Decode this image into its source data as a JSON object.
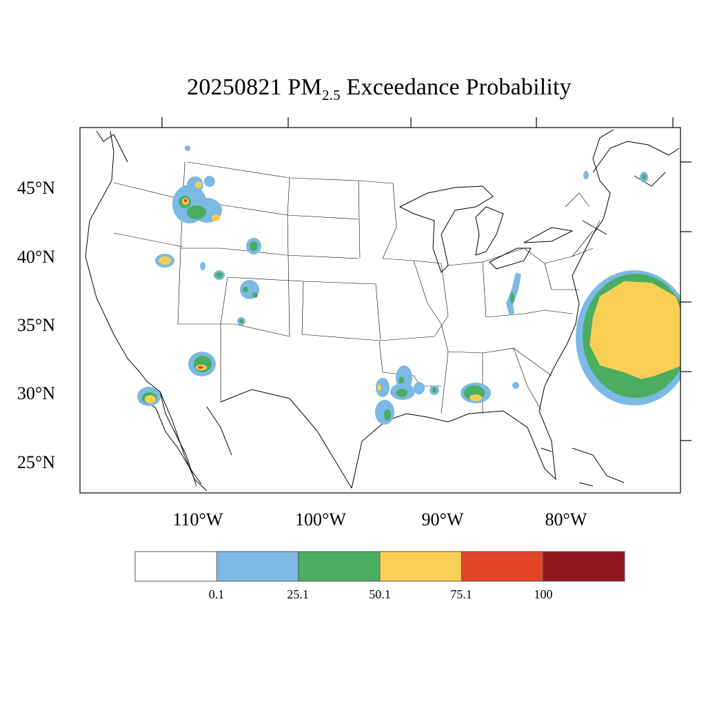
{
  "title": {
    "prefix": "20250821 PM",
    "subscript": "2.5",
    "suffix": " Exceedance Probability"
  },
  "map": {
    "lat_labels": [
      "45°N",
      "40°N",
      "35°N",
      "30°N",
      "25°N"
    ],
    "lon_labels": [
      "110°W",
      "100°W",
      "90°W",
      "80°W"
    ]
  },
  "colorbar": {
    "colors": [
      "#ffffff",
      "#7cb9e4",
      "#4aad5f",
      "#f8ce55",
      "#e34428",
      "#91161d"
    ],
    "tick_labels": [
      "0.1",
      "25.1",
      "50.1",
      "75.1",
      "100"
    ]
  }
}
